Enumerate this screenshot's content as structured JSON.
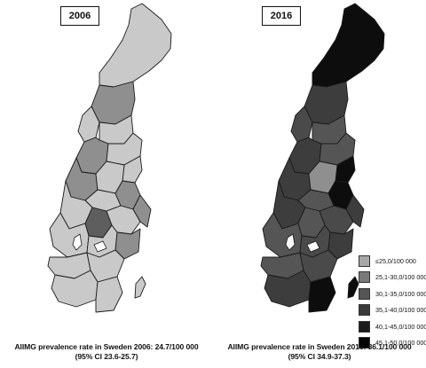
{
  "left_panel": {
    "year": "2006",
    "caption_line1": "AllMG prevalence rate in Sweden 2006: 24.7/100 000",
    "caption_line2": "(95% CI 23.6-25.7)",
    "region_fills": [
      "#c9c9c9",
      "#8f8f8f",
      "#c9c9c9",
      "#c9c9c9",
      "#8f8f8f",
      "#c9c9c9",
      "#c9c9c9",
      "#8f8f8f",
      "#c9c9c9",
      "#c9c9c9",
      "#8f8f8f",
      "#c9c9c9",
      "#5e5e5e",
      "#c9c9c9",
      "#8f8f8f",
      "#c9c9c9",
      "#c9c9c9",
      "#8f8f8f",
      "#c9c9c9",
      "#c9c9c9",
      "#c9c9c9",
      "#c9c9c9"
    ]
  },
  "right_panel": {
    "year": "2016",
    "caption_line1": "AllMG prevalence rate in Sweden 2016: 36.1/100 000",
    "caption_line2": "(95% CI 34.9-37.3)",
    "region_fills": [
      "#0d0d0d",
      "#3d3d3d",
      "#4a4a4a",
      "#555555",
      "#3d3d3d",
      "#555555",
      "#0d0d0d",
      "#3d3d3d",
      "#8f8f8f",
      "#555555",
      "#0d0d0d",
      "#3d3d3d",
      "#555555",
      "#4a4a4a",
      "#3d3d3d",
      "#555555",
      "#4a4a4a",
      "#3d3d3d",
      "#555555",
      "#4a4a4a",
      "#3d3d3d",
      "#0d0d0d"
    ]
  },
  "legend": [
    {
      "label": "≤25,0/100 000",
      "color": "#a8a8a8"
    },
    {
      "label": "25,1-30,0/100 000",
      "color": "#7a7a7a"
    },
    {
      "label": "30,1-35,0/100 000",
      "color": "#555555"
    },
    {
      "label": "35,1-40,0/100 000",
      "color": "#3a3a3a"
    },
    {
      "label": "40,1-45,0/100 000",
      "color": "#1c1c1c"
    },
    {
      "label": "45,1-50,0/100 000",
      "color": "#050505"
    }
  ]
}
